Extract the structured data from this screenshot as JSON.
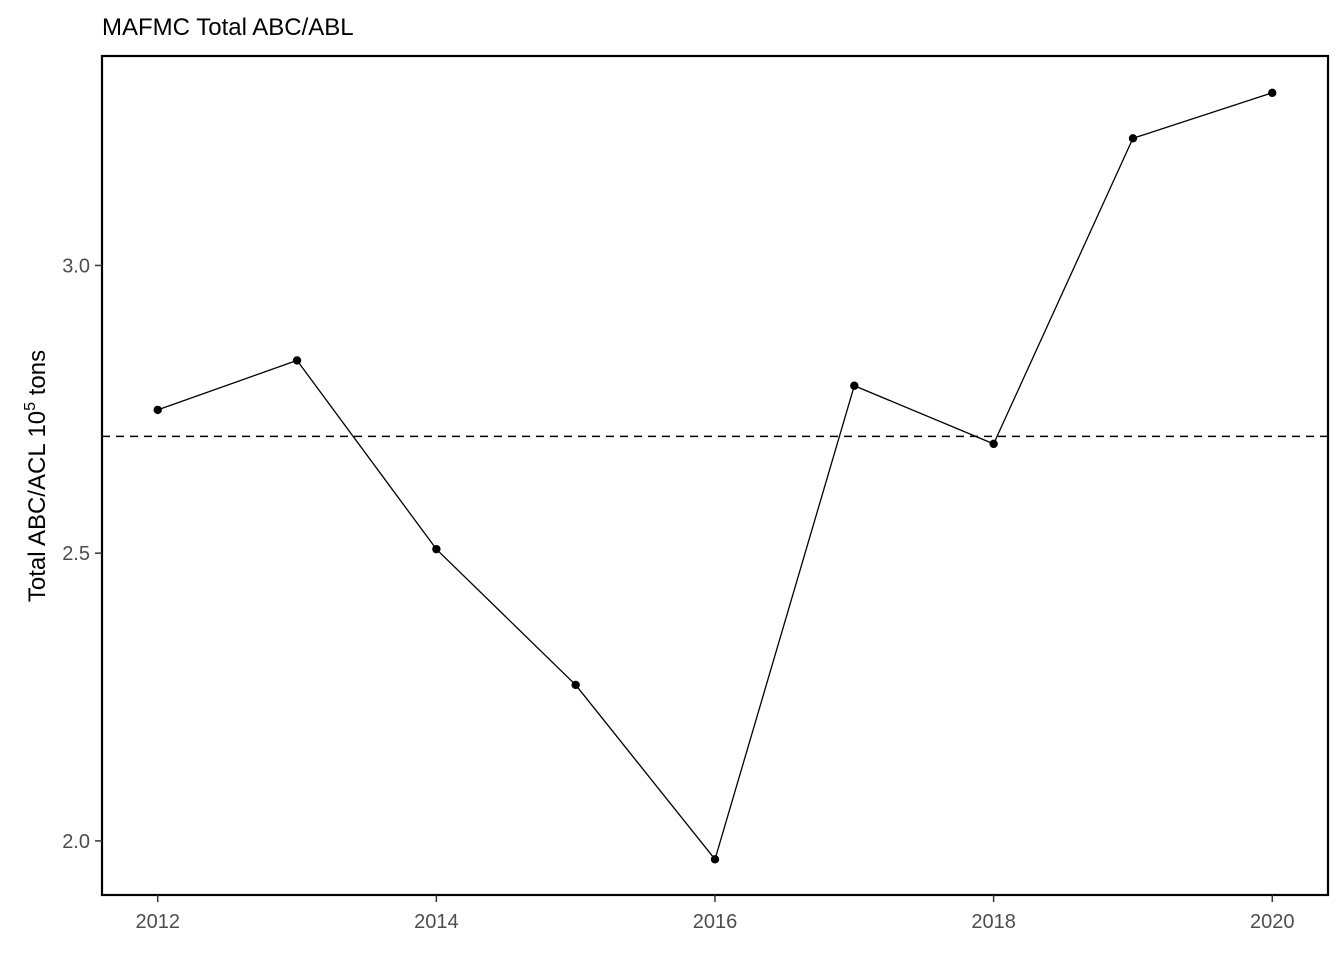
{
  "chart_data": {
    "type": "line",
    "title": "MAFMC Total ABC/ABL",
    "xlabel": "",
    "ylabel_prefix": "Total ABC/ACL 10",
    "ylabel_superscript": "5",
    "ylabel_suffix": " tons",
    "x": [
      2012,
      2013,
      2014,
      2015,
      2016,
      2017,
      2018,
      2019,
      2020
    ],
    "values": [
      2.749,
      2.835,
      2.507,
      2.271,
      1.968,
      2.791,
      2.69,
      3.221,
      3.3
    ],
    "reference_line": 2.703,
    "reference_line_style": "dashed",
    "xlim": [
      2011.6,
      2020.4
    ],
    "ylim": [
      1.906,
      3.364
    ],
    "x_ticks": [
      2012,
      2014,
      2016,
      2018,
      2020
    ],
    "x_tick_labels": [
      "2012",
      "2014",
      "2016",
      "2018",
      "2020"
    ],
    "y_ticks": [
      2.0,
      2.5,
      3.0
    ],
    "y_tick_labels": [
      "2.0",
      "2.5",
      "3.0"
    ],
    "grid": false,
    "legend": "none",
    "colors": {
      "line": "#000000",
      "points": "#000000",
      "reference": "#000000",
      "frame": "#000000",
      "tick_text": "#4d4d4d"
    }
  }
}
